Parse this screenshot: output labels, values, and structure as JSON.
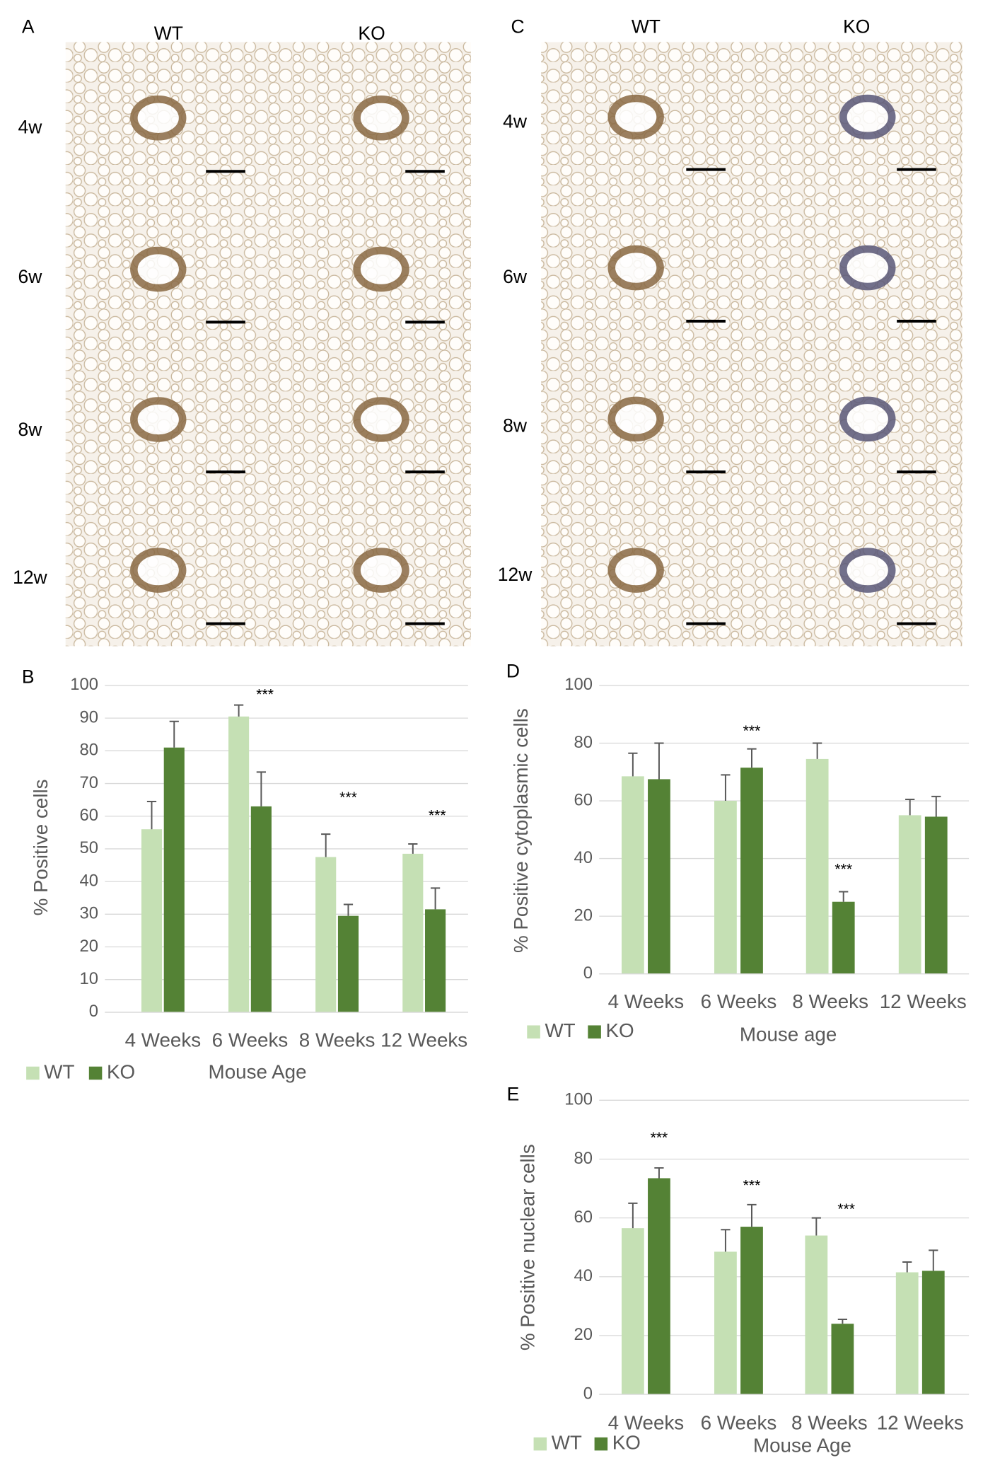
{
  "micrographs": [
    {
      "label": "A",
      "columns": [
        "WT",
        "KO"
      ],
      "rows": [
        "4w",
        "6w",
        "8w",
        "12w"
      ]
    },
    {
      "label": "C",
      "columns": [
        "WT",
        "KO"
      ],
      "rows": [
        "4w",
        "6w",
        "8w",
        "12w"
      ]
    }
  ],
  "chart_data": [
    {
      "type": "bar",
      "panel": "B",
      "ylabel": "% Positive cells",
      "xlabel": "Mouse Age",
      "categories": [
        "4 Weeks",
        "6 Weeks",
        "8 Weeks",
        "12 Weeks"
      ],
      "series": [
        {
          "name": "WT",
          "color": "#c5e0b4",
          "values": [
            56,
            90.5,
            47.5,
            48.5
          ],
          "errors": [
            8.5,
            3.5,
            7,
            3
          ]
        },
        {
          "name": "KO",
          "color": "#548235",
          "values": [
            81,
            63,
            29.5,
            31.5
          ],
          "errors": [
            8,
            10.5,
            3.5,
            6.5
          ]
        }
      ],
      "ylim": [
        0,
        100
      ],
      "yticks": [
        0,
        10,
        20,
        30,
        40,
        50,
        60,
        70,
        80,
        90,
        100
      ],
      "grid": true,
      "annotations": [
        "***",
        "***",
        "***"
      ]
    },
    {
      "type": "bar",
      "panel": "D",
      "ylabel": "% Positive cytoplasmic cells",
      "xlabel": "Mouse age",
      "categories": [
        "4 Weeks",
        "6 Weeks",
        "8 Weeks",
        "12 Weeks"
      ],
      "series": [
        {
          "name": "WT",
          "color": "#c5e0b4",
          "values": [
            68.5,
            60,
            74.5,
            55
          ],
          "errors": [
            8,
            9,
            5.5,
            5.5
          ]
        },
        {
          "name": "KO",
          "color": "#548235",
          "values": [
            67.5,
            71.5,
            25,
            54.5
          ],
          "errors": [
            12.5,
            6.5,
            3.5,
            7
          ]
        }
      ],
      "ylim": [
        0,
        100
      ],
      "yticks": [
        0,
        20,
        40,
        60,
        80,
        100
      ],
      "grid": true,
      "annotations": [
        "***",
        "***"
      ]
    },
    {
      "type": "bar",
      "panel": "E",
      "ylabel": "% Positive nuclear cells",
      "xlabel": "Mouse Age",
      "categories": [
        "4 Weeks",
        "6 Weeks",
        "8 Weeks",
        "12 Weeks"
      ],
      "series": [
        {
          "name": "WT",
          "color": "#c5e0b4",
          "values": [
            56.5,
            48.5,
            54,
            41.5
          ],
          "errors": [
            8.5,
            7.5,
            6,
            3.5
          ]
        },
        {
          "name": "KO",
          "color": "#548235",
          "values": [
            73.5,
            57,
            24,
            42
          ],
          "errors": [
            3.5,
            7.5,
            1.5,
            7
          ]
        }
      ],
      "ylim": [
        0,
        100
      ],
      "yticks": [
        0,
        20,
        40,
        60,
        80,
        100
      ],
      "grid": true,
      "annotations": [
        "***",
        "***",
        "***"
      ]
    }
  ]
}
